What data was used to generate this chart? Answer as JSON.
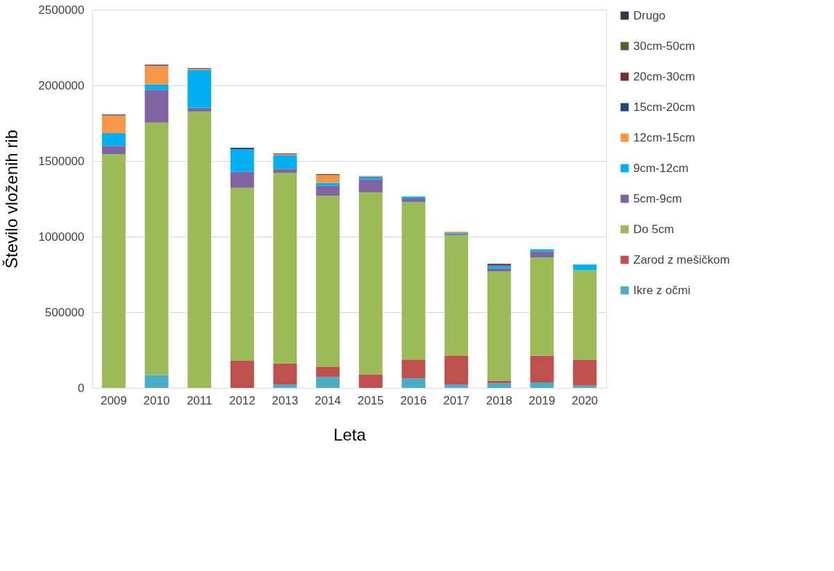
{
  "chart_data": {
    "type": "bar",
    "stacked": true,
    "xlabel": "Leta",
    "ylabel": "Število vloženih rib",
    "categories": [
      "2009",
      "2010",
      "2011",
      "2012",
      "2013",
      "2014",
      "2015",
      "2016",
      "2017",
      "2018",
      "2019",
      "2020"
    ],
    "ylim": [
      0,
      2500000
    ],
    "yticks": [
      0,
      500000,
      1000000,
      1500000,
      2000000,
      2500000
    ],
    "grid": "y",
    "legend": "right",
    "series": [
      {
        "name": "Ikre z očmi",
        "color": "#4bacc6",
        "values": [
          null,
          84000,
          null,
          null,
          23000,
          72000,
          null,
          63000,
          23000,
          31000,
          37000,
          15000
        ]
      },
      {
        "name": "Zarod z mešičkom",
        "color": "#c0504d",
        "values": [
          null,
          null,
          null,
          179000,
          139000,
          66000,
          89000,
          124000,
          188000,
          16000,
          175000,
          168000
        ]
      },
      {
        "name": "Do 5cm",
        "color": "#9bbb59",
        "values": [
          1545000,
          1670000,
          1827000,
          1143000,
          1260000,
          1133000,
          1205000,
          1042000,
          797000,
          722000,
          650000,
          594000
        ]
      },
      {
        "name": "5cm-9cm",
        "color": "#8064a2",
        "values": [
          55000,
          217000,
          24000,
          106000,
          26000,
          65000,
          84000,
          23000,
          7000,
          21000,
          40000,
          null
        ]
      },
      {
        "name": "9cm-12cm",
        "color": "#00b0f0",
        "values": [
          84000,
          35000,
          251000,
          150000,
          90000,
          19000,
          16000,
          13000,
          8000,
          19000,
          14000,
          38000
        ]
      },
      {
        "name": "12cm-15cm",
        "color": "#f79646",
        "values": [
          116000,
          122000,
          6000,
          null,
          6000,
          52000,
          7000,
          null,
          9000,
          null,
          null,
          null
        ]
      },
      {
        "name": "15cm-20cm",
        "color": "#1f497d",
        "values": [
          5000,
          3000,
          null,
          5000,
          null,
          null,
          null,
          null,
          null,
          null,
          null,
          null
        ]
      },
      {
        "name": "20cm-30cm",
        "color": "#772c2a",
        "values": [
          null,
          null,
          5000,
          null,
          5000,
          6000,
          null,
          null,
          null,
          11000,
          null,
          null
        ]
      },
      {
        "name": "30cm-50cm",
        "color": "#4f6228",
        "values": [
          null,
          null,
          null,
          null,
          null,
          null,
          null,
          null,
          null,
          null,
          null,
          null
        ]
      },
      {
        "name": "Drugo",
        "color": "#403151",
        "values": [
          3000,
          6000,
          null,
          4000,
          null,
          null,
          null,
          null,
          null,
          null,
          null,
          null
        ]
      }
    ]
  }
}
